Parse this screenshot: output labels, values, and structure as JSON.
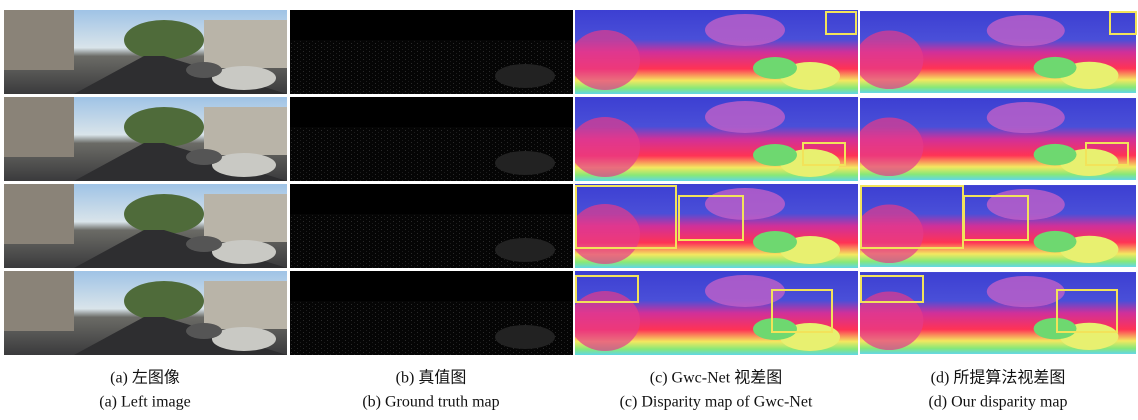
{
  "captions": [
    {
      "cn": "(a) 左图像",
      "en": "(a) Left image"
    },
    {
      "cn": "(b) 真值图",
      "en": "(b) Ground truth map"
    },
    {
      "cn": "(c) Gwc-Net 视差图",
      "en": "(c) Disparity map of Gwc-Net"
    },
    {
      "cn": "(d) 所提算法视差图",
      "en": "(d) Our disparity map"
    }
  ]
}
